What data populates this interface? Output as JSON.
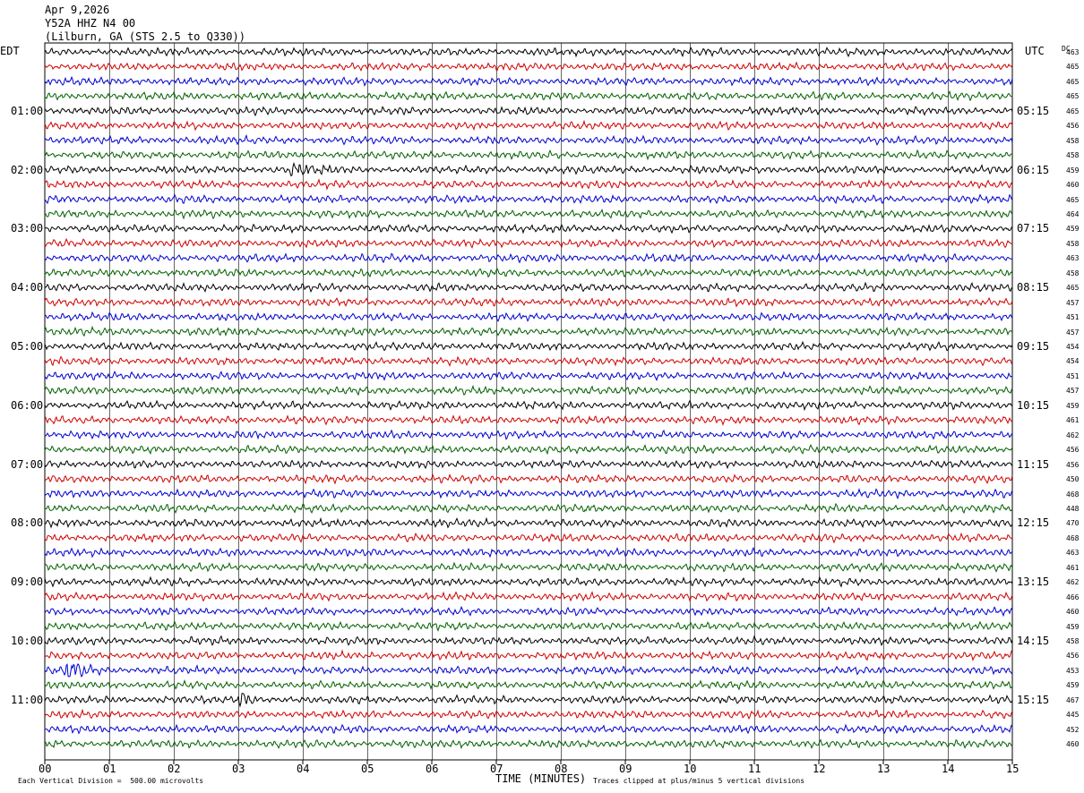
{
  "header": {
    "date": "Apr 9,2026",
    "station": "Y52A HHZ N4 00",
    "location": "(Lilburn, GA (STS 2.5 to Q330))"
  },
  "axis": {
    "left_tz": "EDT",
    "right_tz": "UTC",
    "dc_label": "DC",
    "xlabel": "TIME (MINUTES)",
    "scale_note": "Each Vertical Division =  500.00 microvolts",
    "clip_note": "Traces clipped at plus/minus 5 vertical divisions"
  },
  "chart_data": {
    "type": "line",
    "title": "",
    "xlabel": "TIME (MINUTES)",
    "xlim": [
      0,
      15
    ],
    "x_ticks": [
      "00",
      "01",
      "02",
      "03",
      "04",
      "05",
      "06",
      "07",
      "08",
      "09",
      "10",
      "11",
      "12",
      "13",
      "14",
      "15"
    ],
    "grid": true,
    "trace_colors": [
      "#000000",
      "#d00000",
      "#0000d0",
      "#006000"
    ],
    "left_time_labels": [
      "01:00",
      "02:00",
      "03:00",
      "04:00",
      "05:00",
      "06:00",
      "07:00",
      "08:00",
      "09:00",
      "10:00",
      "11:00"
    ],
    "right_time_labels": [
      "05:15",
      "06:15",
      "07:15",
      "08:15",
      "09:15",
      "10:15",
      "11:15",
      "12:15",
      "13:15",
      "14:15",
      "15:15"
    ],
    "dc_offsets": [
      463,
      465,
      465,
      465,
      465,
      456,
      458,
      458,
      459,
      460,
      465,
      464,
      459,
      458,
      463,
      458,
      465,
      457,
      451,
      457,
      454,
      454,
      451,
      457,
      459,
      461,
      462,
      456,
      456,
      450,
      468,
      448,
      470,
      468,
      463,
      461,
      462,
      466,
      460,
      459,
      458,
      456,
      453,
      459,
      467,
      445,
      452,
      460
    ],
    "events": [
      {
        "trace": 42,
        "start_min": 0.3,
        "end_min": 1.0,
        "amplitude": "high"
      },
      {
        "trace": 44,
        "start_min": 3.0,
        "end_min": 3.3,
        "amplitude": "high"
      },
      {
        "trace": 8,
        "start_min": 3.8,
        "end_min": 4.5,
        "amplitude": "medium"
      }
    ]
  }
}
